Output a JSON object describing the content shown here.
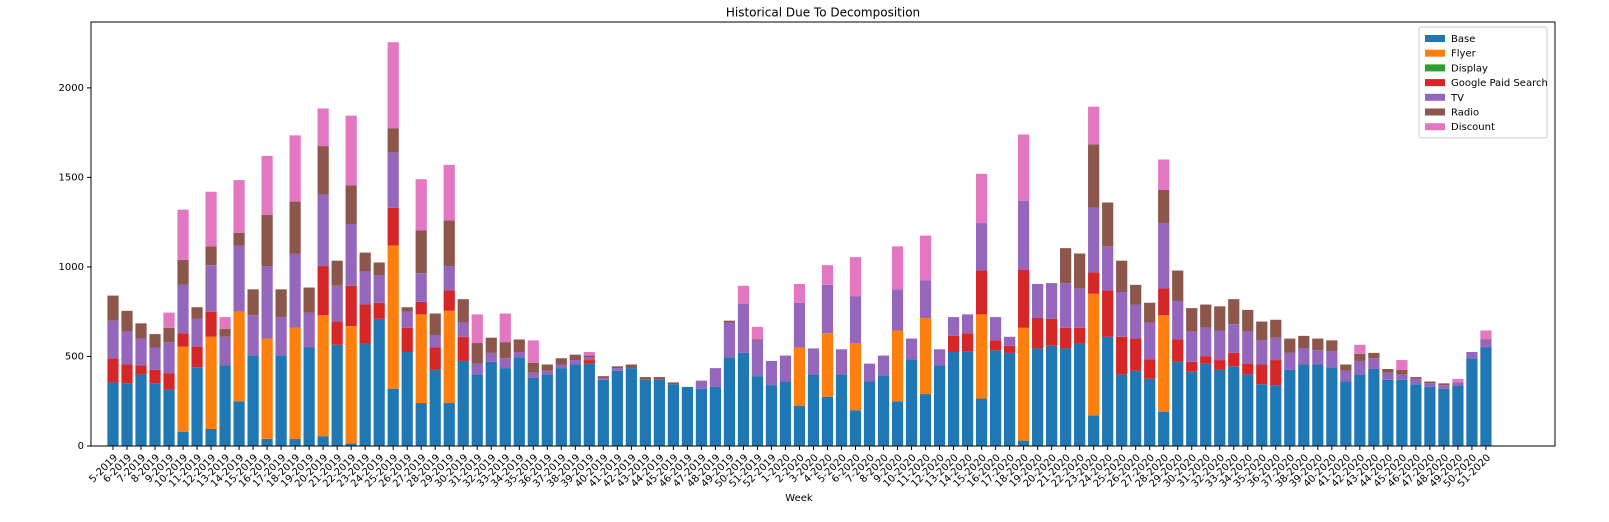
{
  "chart_data": {
    "type": "stacked_bar",
    "title": "Historical Due To Decomposition",
    "x_label": "Week",
    "categories": [
      "5-2019",
      "6-2019",
      "7-2019",
      "8-2019",
      "9-2019",
      "10-2019",
      "11-2019",
      "12-2019",
      "13-2019",
      "14-2019",
      "15-2019",
      "16-2019",
      "17-2019",
      "18-2019",
      "19-2019",
      "20-2019",
      "21-2019",
      "22-2019",
      "23-2019",
      "24-2019",
      "25-2019",
      "26-2019",
      "27-2019",
      "28-2019",
      "29-2019",
      "30-2019",
      "31-2019",
      "32-2019",
      "33-2019",
      "34-2019",
      "35-2019",
      "36-2019",
      "37-2019",
      "38-2019",
      "39-2019",
      "40-2019",
      "41-2019",
      "42-2019",
      "43-2019",
      "44-2019",
      "45-2019",
      "46-2019",
      "47-2019",
      "48-2019",
      "49-2019",
      "50-2019",
      "51-2019",
      "52-2019",
      "1-2020",
      "2-2020",
      "3-2020",
      "4-2020",
      "5-2020",
      "6-2020",
      "7-2020",
      "8-2020",
      "9-2020",
      "10-2020",
      "11-2020",
      "12-2020",
      "13-2020",
      "14-2020",
      "15-2020",
      "16-2020",
      "17-2020",
      "18-2020",
      "19-2020",
      "20-2020",
      "21-2020",
      "22-2020",
      "23-2020",
      "24-2020",
      "25-2020",
      "26-2020",
      "27-2020",
      "28-2020",
      "29-2020",
      "30-2020",
      "31-2020",
      "32-2020",
      "33-2020",
      "34-2020",
      "35-2020",
      "36-2020",
      "37-2020",
      "38-2020",
      "39-2020",
      "40-2020",
      "41-2020",
      "42-2020",
      "43-2020",
      "44-2020",
      "45-2020",
      "46-2020",
      "47-2020",
      "48-2020",
      "49-2020",
      "50-2020",
      "51-2020"
    ],
    "series": [
      {
        "name": "Base",
        "color": "#1f77b4",
        "values": [
          355,
          350,
          400,
          350,
          315,
          80,
          440,
          95,
          450,
          250,
          505,
          40,
          505,
          40,
          550,
          55,
          565,
          15,
          570,
          710,
          320,
          525,
          240,
          425,
          240,
          475,
          400,
          470,
          435,
          495,
          380,
          400,
          435,
          455,
          460,
          370,
          420,
          435,
          370,
          370,
          345,
          330,
          320,
          330,
          495,
          520,
          390,
          340,
          360,
          225,
          400,
          275,
          400,
          200,
          360,
          395,
          250,
          485,
          290,
          450,
          525,
          530,
          265,
          535,
          520,
          30,
          545,
          560,
          545,
          575,
          170,
          610,
          400,
          420,
          375,
          190,
          470,
          415,
          460,
          425,
          445,
          400,
          345,
          340,
          425,
          455,
          455,
          440,
          360,
          400,
          430,
          370,
          370,
          345,
          330,
          320,
          335,
          490,
          550
        ]
      },
      {
        "name": "Flyer",
        "color": "#ff7f0e",
        "values": [
          0,
          0,
          0,
          0,
          0,
          475,
          0,
          515,
          0,
          500,
          0,
          560,
          0,
          620,
          0,
          675,
          0,
          655,
          0,
          0,
          800,
          0,
          495,
          0,
          515,
          0,
          0,
          0,
          0,
          0,
          0,
          0,
          0,
          0,
          0,
          0,
          0,
          0,
          0,
          0,
          0,
          0,
          0,
          0,
          0,
          0,
          0,
          0,
          0,
          325,
          0,
          355,
          0,
          375,
          0,
          0,
          395,
          0,
          425,
          0,
          0,
          0,
          470,
          0,
          0,
          630,
          0,
          0,
          0,
          0,
          680,
          0,
          0,
          0,
          0,
          540,
          0,
          0,
          0,
          0,
          0,
          0,
          0,
          0,
          0,
          0,
          0,
          0,
          0,
          0,
          0,
          0,
          0,
          0,
          0,
          0,
          0,
          0,
          0
        ]
      },
      {
        "name": "Display",
        "color": "#2ca02c",
        "values": [
          0,
          0,
          0,
          0,
          0,
          0,
          0,
          0,
          0,
          0,
          0,
          0,
          0,
          0,
          0,
          0,
          0,
          0,
          0,
          0,
          0,
          0,
          0,
          0,
          0,
          0,
          0,
          0,
          0,
          0,
          0,
          0,
          0,
          0,
          0,
          0,
          0,
          0,
          0,
          0,
          0,
          0,
          0,
          0,
          0,
          0,
          0,
          0,
          0,
          0,
          0,
          0,
          0,
          0,
          0,
          0,
          0,
          0,
          0,
          0,
          0,
          0,
          0,
          0,
          0,
          0,
          0,
          0,
          0,
          0,
          0,
          0,
          0,
          0,
          0,
          0,
          0,
          0,
          0,
          0,
          0,
          0,
          0,
          0,
          0,
          0,
          0,
          0,
          0,
          0,
          0,
          0,
          0,
          0,
          0,
          0,
          0,
          0,
          0
        ]
      },
      {
        "name": "Google Paid Search",
        "color": "#d62728",
        "values": [
          135,
          105,
          50,
          75,
          90,
          75,
          115,
          140,
          0,
          0,
          0,
          0,
          0,
          0,
          0,
          275,
          130,
          225,
          220,
          90,
          210,
          135,
          70,
          125,
          115,
          135,
          0,
          0,
          0,
          0,
          0,
          0,
          0,
          0,
          20,
          0,
          0,
          0,
          0,
          0,
          0,
          0,
          0,
          0,
          0,
          0,
          0,
          0,
          0,
          0,
          0,
          0,
          0,
          0,
          0,
          0,
          0,
          0,
          0,
          0,
          90,
          100,
          245,
          55,
          40,
          325,
          170,
          150,
          115,
          85,
          120,
          260,
          210,
          180,
          110,
          150,
          125,
          55,
          40,
          55,
          75,
          60,
          110,
          140,
          0,
          0,
          0,
          0,
          0,
          0,
          0,
          0,
          0,
          0,
          0,
          0,
          0,
          0,
          0
        ]
      },
      {
        "name": "TV",
        "color": "#9467bd",
        "values": [
          210,
          185,
          150,
          125,
          175,
          270,
          155,
          260,
          160,
          370,
          225,
          405,
          215,
          415,
          195,
          400,
          200,
          345,
          185,
          155,
          310,
          90,
          160,
          70,
          135,
          80,
          60,
          50,
          55,
          30,
          30,
          20,
          20,
          25,
          15,
          10,
          15,
          0,
          0,
          0,
          0,
          0,
          45,
          105,
          195,
          275,
          200,
          135,
          145,
          250,
          145,
          270,
          140,
          260,
          100,
          110,
          230,
          115,
          210,
          90,
          105,
          105,
          265,
          130,
          50,
          385,
          190,
          200,
          250,
          220,
          360,
          245,
          250,
          190,
          205,
          365,
          215,
          170,
          160,
          165,
          160,
          180,
          135,
          125,
          95,
          90,
          80,
          90,
          60,
          75,
          60,
          40,
          30,
          30,
          20,
          20,
          20,
          35,
          40
        ]
      },
      {
        "name": "Radio",
        "color": "#8c564b",
        "values": [
          140,
          115,
          85,
          75,
          80,
          140,
          65,
          105,
          45,
          70,
          145,
          285,
          155,
          290,
          140,
          270,
          140,
          215,
          105,
          70,
          135,
          25,
          240,
          120,
          255,
          130,
          115,
          85,
          90,
          70,
          55,
          35,
          35,
          30,
          10,
          10,
          10,
          20,
          15,
          15,
          10,
          0,
          0,
          0,
          10,
          0,
          5,
          0,
          0,
          0,
          0,
          0,
          0,
          0,
          0,
          0,
          0,
          0,
          0,
          0,
          0,
          0,
          0,
          0,
          0,
          0,
          0,
          0,
          195,
          195,
          355,
          245,
          175,
          110,
          110,
          185,
          170,
          130,
          130,
          135,
          140,
          120,
          105,
          100,
          80,
          70,
          65,
          60,
          35,
          40,
          30,
          20,
          25,
          10,
          10,
          10,
          0,
          0,
          5
        ]
      },
      {
        "name": "Discount",
        "color": "#e377c2",
        "values": [
          0,
          0,
          0,
          0,
          85,
          280,
          0,
          305,
          65,
          295,
          0,
          330,
          0,
          370,
          0,
          210,
          0,
          390,
          0,
          0,
          480,
          0,
          285,
          0,
          310,
          0,
          160,
          0,
          160,
          0,
          125,
          0,
          0,
          0,
          20,
          0,
          0,
          0,
          0,
          0,
          0,
          0,
          0,
          0,
          0,
          100,
          70,
          0,
          0,
          105,
          0,
          110,
          0,
          220,
          0,
          0,
          240,
          0,
          250,
          0,
          0,
          0,
          275,
          0,
          0,
          370,
          0,
          0,
          0,
          0,
          210,
          0,
          0,
          0,
          0,
          170,
          0,
          0,
          0,
          0,
          0,
          0,
          0,
          0,
          0,
          0,
          0,
          0,
          0,
          50,
          0,
          0,
          55,
          0,
          0,
          0,
          20,
          0,
          50
        ]
      }
    ],
    "ylim": [
      0,
      2368
    ],
    "yticks": [
      0,
      500,
      1000,
      1500,
      2000
    ],
    "grid": false,
    "legend": "upper right"
  }
}
